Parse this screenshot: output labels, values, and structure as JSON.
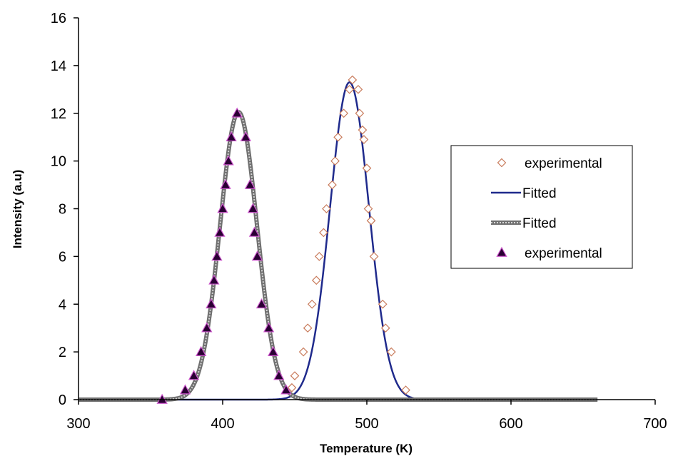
{
  "chart_data": {
    "type": "scatter",
    "xlabel": "Temperature (K)",
    "ylabel": "Intensity (a.u)",
    "xlim": [
      300,
      700
    ],
    "ylim": [
      0,
      16
    ],
    "xticks": [
      300,
      400,
      500,
      600,
      700
    ],
    "yticks": [
      0,
      2,
      4,
      6,
      8,
      10,
      12,
      14,
      16
    ],
    "grid": false,
    "legend_position": "right",
    "series": [
      {
        "name": "experimental",
        "kind": "scatter",
        "marker": "diamond-open",
        "color": "#c87a5a",
        "points": [
          [
            448,
            0.5
          ],
          [
            450,
            1
          ],
          [
            456,
            2
          ],
          [
            459,
            3
          ],
          [
            462,
            4
          ],
          [
            465,
            5
          ],
          [
            467,
            6
          ],
          [
            470,
            7
          ],
          [
            472,
            8
          ],
          [
            476,
            9
          ],
          [
            478,
            10
          ],
          [
            480,
            11
          ],
          [
            484,
            12
          ],
          [
            488,
            13
          ],
          [
            490,
            13.4
          ],
          [
            494,
            13
          ],
          [
            495,
            12
          ],
          [
            497,
            11.3
          ],
          [
            498,
            10.9
          ],
          [
            500,
            9.7
          ],
          [
            501,
            8
          ],
          [
            503,
            7.5
          ],
          [
            505,
            6
          ],
          [
            511,
            4
          ],
          [
            513,
            3
          ],
          [
            517,
            2
          ],
          [
            527,
            0.4
          ]
        ]
      },
      {
        "name": "Fitted",
        "kind": "line",
        "style": "solid",
        "color": "#1f2a8c",
        "curve": {
          "peak_x": 488,
          "peak_y": 13.3,
          "width": 13.5,
          "x_min": 300,
          "x_max": 660
        }
      },
      {
        "name": "Fitted",
        "kind": "line",
        "style": "thick-gray",
        "color": "#777777",
        "curve": {
          "peak_x": 411,
          "peak_y": 12.05,
          "width": 12.8,
          "x_min": 300,
          "x_max": 660
        }
      },
      {
        "name": "experimental",
        "kind": "scatter",
        "marker": "triangle-filled",
        "color": "#2a0033",
        "edge": "#cc55cc",
        "points": [
          [
            358,
            0
          ],
          [
            374,
            0.4
          ],
          [
            380,
            1
          ],
          [
            385,
            2
          ],
          [
            389,
            3
          ],
          [
            392,
            4
          ],
          [
            394,
            5
          ],
          [
            396,
            6
          ],
          [
            398,
            7
          ],
          [
            400,
            8
          ],
          [
            402,
            9
          ],
          [
            404,
            10
          ],
          [
            406,
            11
          ],
          [
            410,
            12
          ],
          [
            416,
            11
          ],
          [
            419,
            9
          ],
          [
            421,
            8
          ],
          [
            422,
            7
          ],
          [
            424,
            6
          ],
          [
            427,
            4
          ],
          [
            432,
            3
          ],
          [
            435,
            2
          ],
          [
            439,
            1
          ],
          [
            444,
            0.4
          ]
        ]
      }
    ]
  }
}
